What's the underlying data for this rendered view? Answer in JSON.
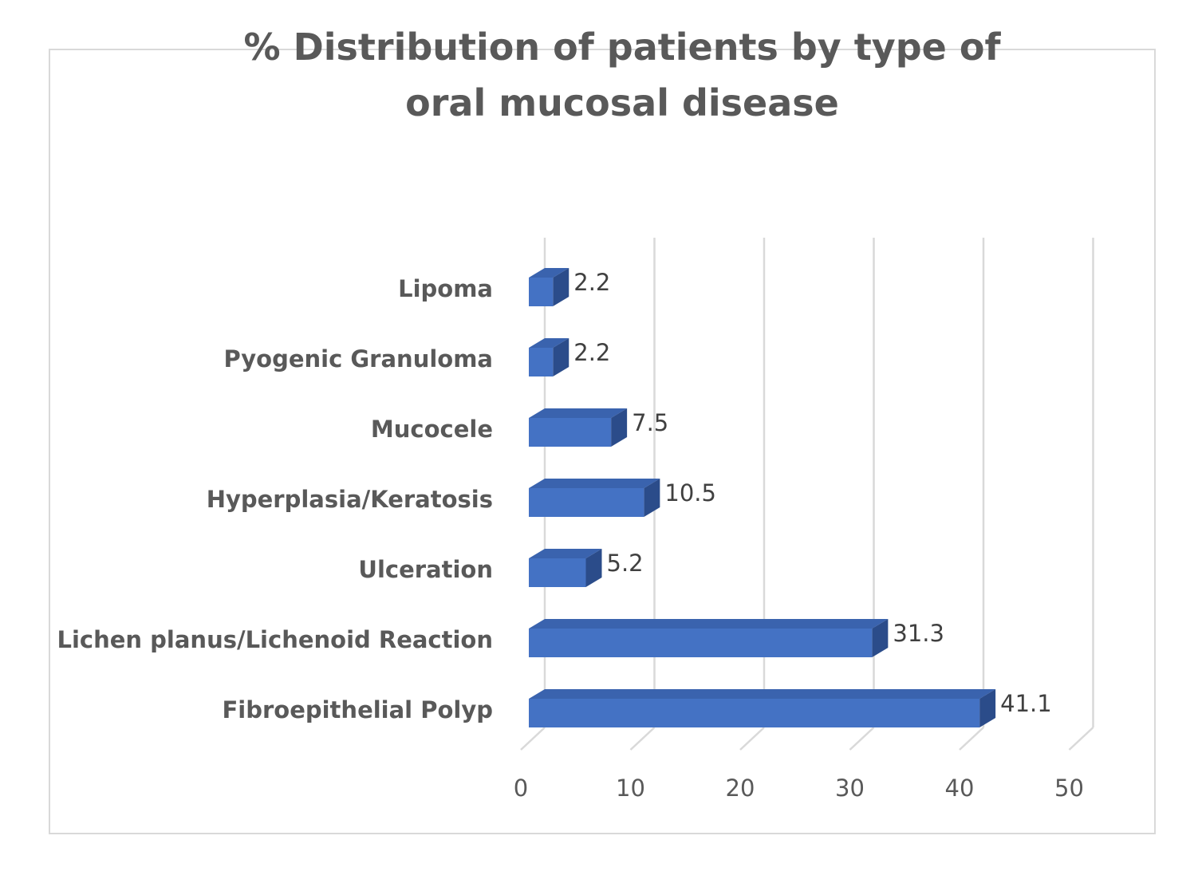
{
  "chart_data": {
    "type": "bar",
    "orientation": "horizontal",
    "style": "3d",
    "title": "% Distribution of patients by type of oral mucosal disease",
    "categories": [
      "Fibroepithelial Polyp",
      "Lichen planus/Lichenoid Reaction",
      "Ulceration",
      "Hyperplasia/Keratosis",
      "Mucocele",
      "Pyogenic Granuloma",
      "Lipoma"
    ],
    "values": [
      41.1,
      31.3,
      5.2,
      10.5,
      7.5,
      2.2,
      2.2
    ],
    "value_labels": [
      "41.1",
      "31.3",
      "5.2",
      "10.5",
      "7.5",
      "2.2",
      "2.2"
    ],
    "xlim": [
      0,
      50
    ],
    "x_ticks": [
      "0",
      "10",
      "20",
      "30",
      "40",
      "50"
    ],
    "xlabel": "",
    "ylabel": "",
    "grid": true,
    "legend": false,
    "colors": {
      "bar_front": "#4472c4",
      "bar_top": "#3a63ae",
      "bar_side": "#2b4c8a",
      "grid": "#d9d9d9",
      "text": "#595959",
      "frame": "#d9d9d9"
    }
  }
}
